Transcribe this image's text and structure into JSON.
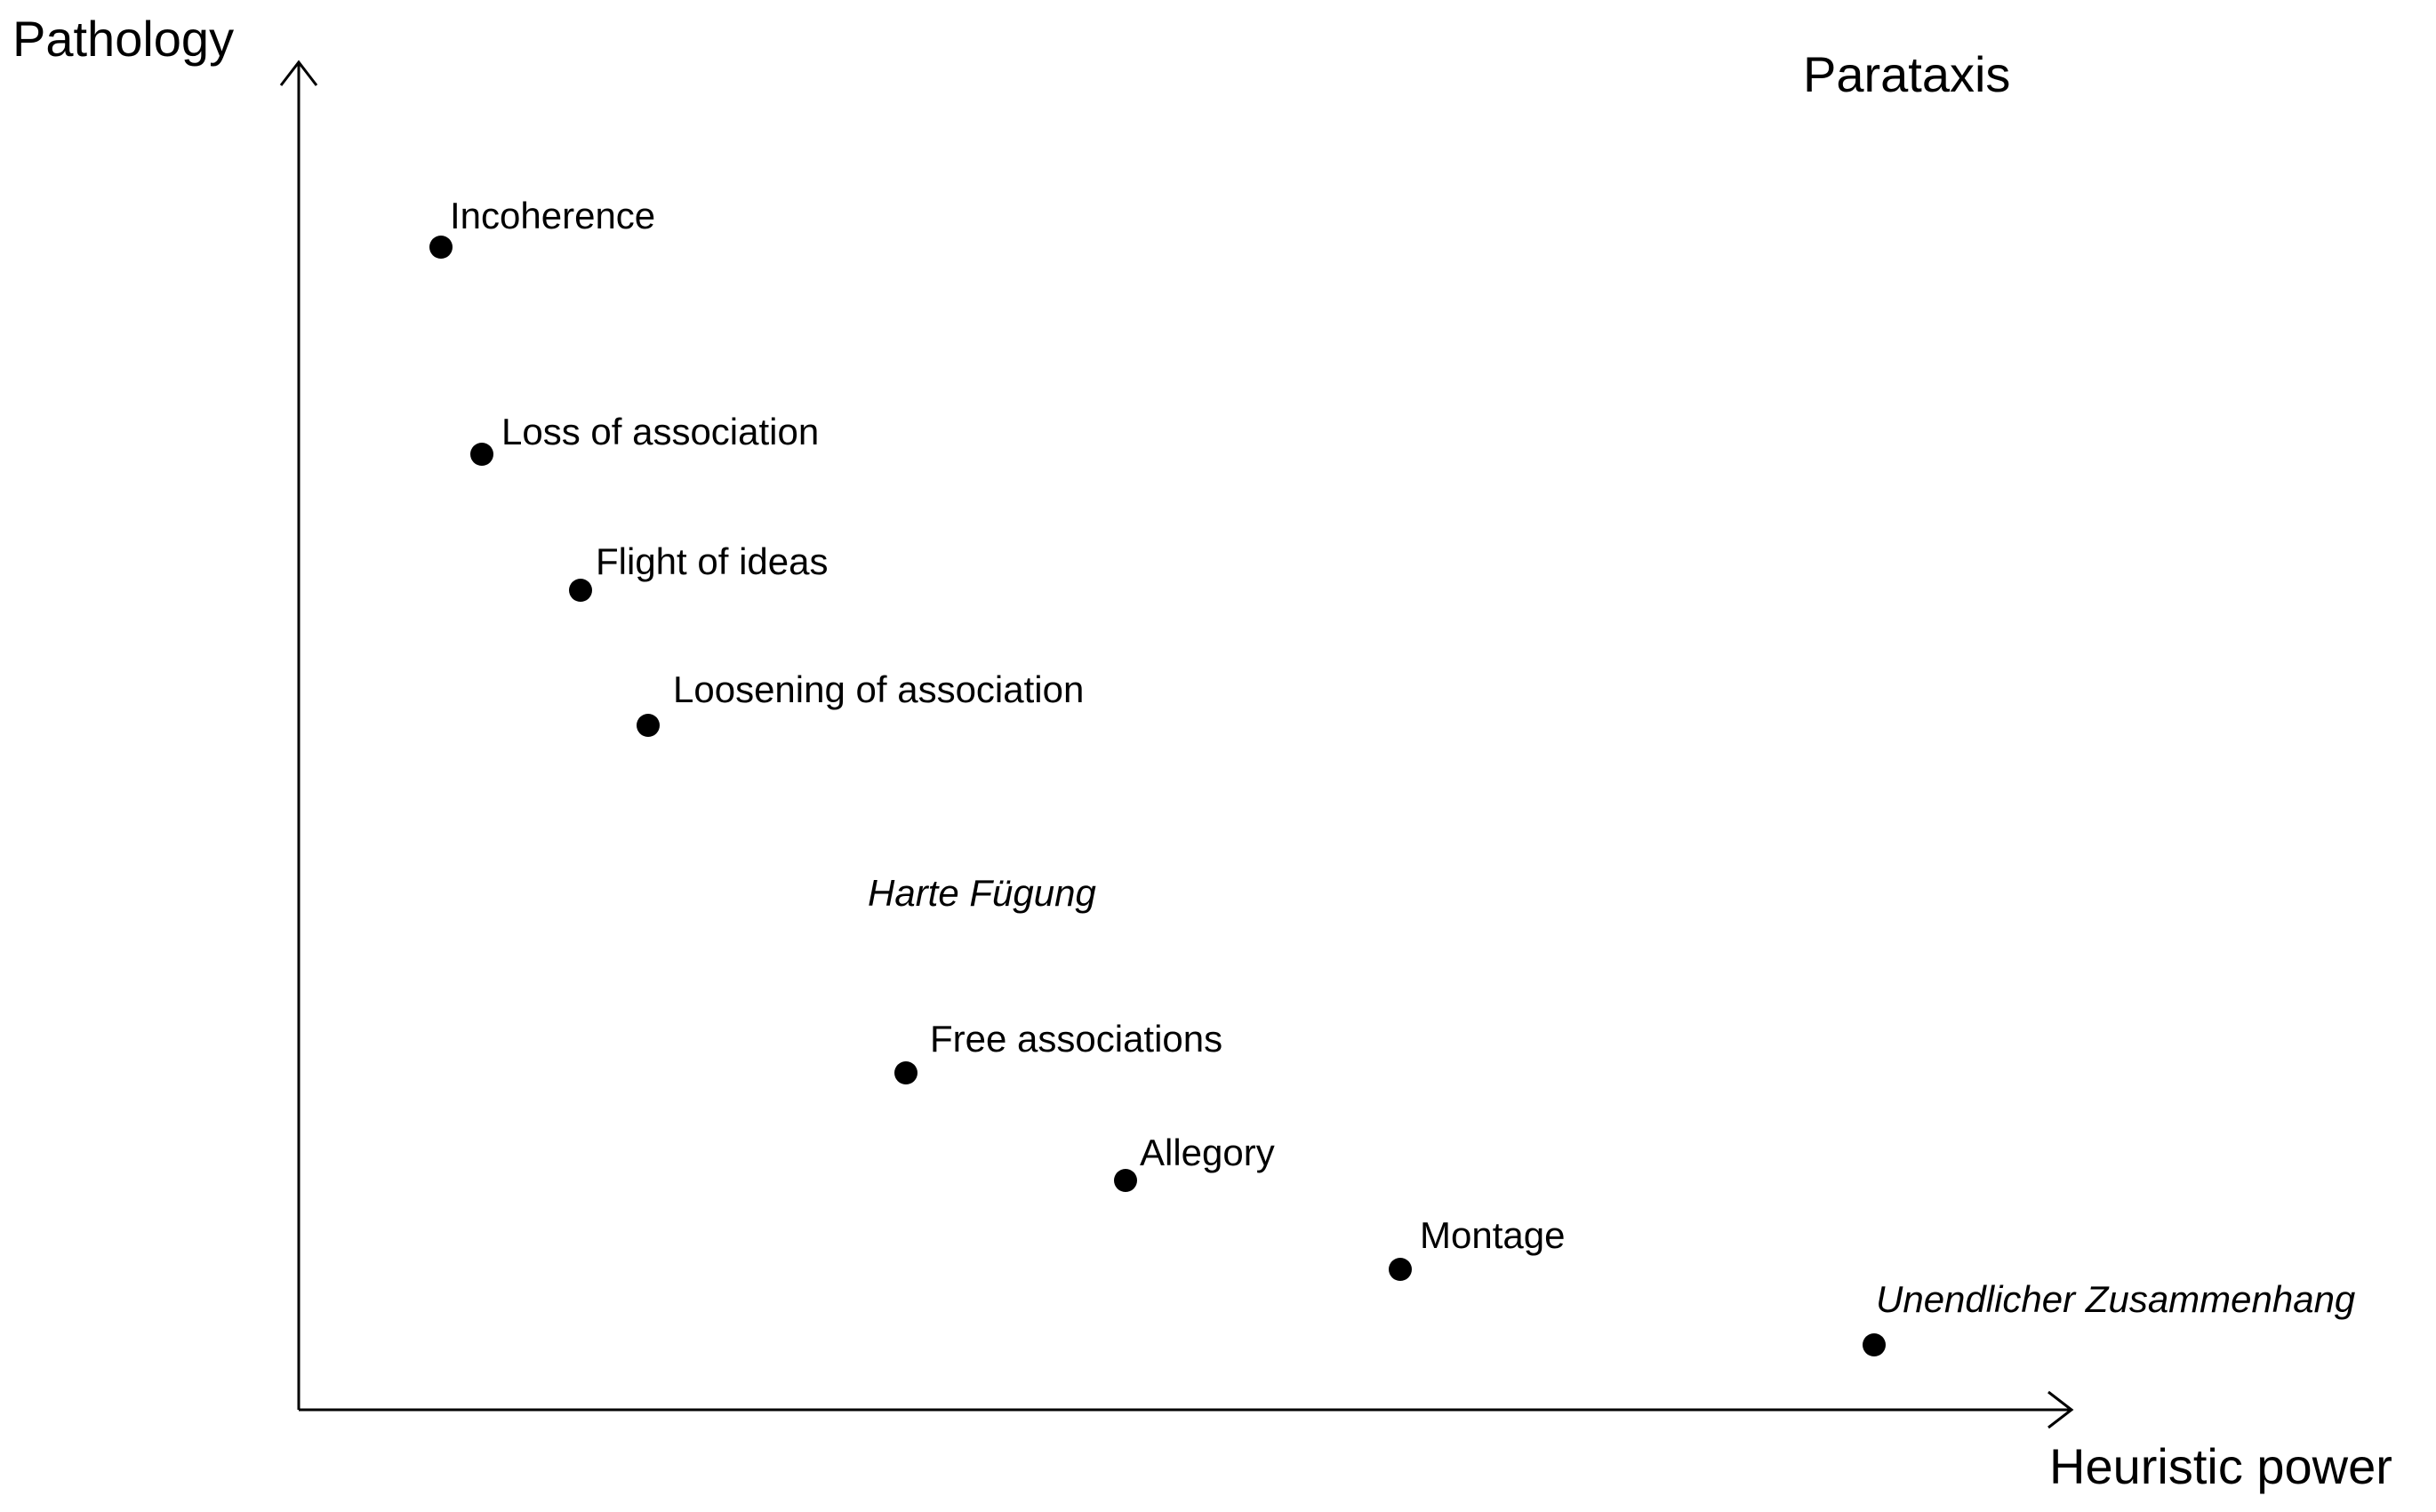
{
  "y_axis_label": "Pathology",
  "x_axis_label": "Heuristic power",
  "title": "Parataxis",
  "floating_label": "Harte Fügung",
  "points": [
    {
      "name": "incoherence",
      "label": "Incoherence",
      "italic": false
    },
    {
      "name": "loss-of-association",
      "label": "Loss of association",
      "italic": false
    },
    {
      "name": "flight-of-ideas",
      "label": "Flight of ideas",
      "italic": false
    },
    {
      "name": "loosening-of-association",
      "label": "Loosening of association",
      "italic": false
    },
    {
      "name": "free-associations",
      "label": "Free associations",
      "italic": false
    },
    {
      "name": "allegory",
      "label": "Allegory",
      "italic": false
    },
    {
      "name": "montage",
      "label": "Montage",
      "italic": false
    },
    {
      "name": "unendlicher-zusammenhang",
      "label": "Unendlicher Zusammenhang",
      "italic": true
    }
  ],
  "colors": {
    "ink": "#000000",
    "background": "#ffffff"
  }
}
